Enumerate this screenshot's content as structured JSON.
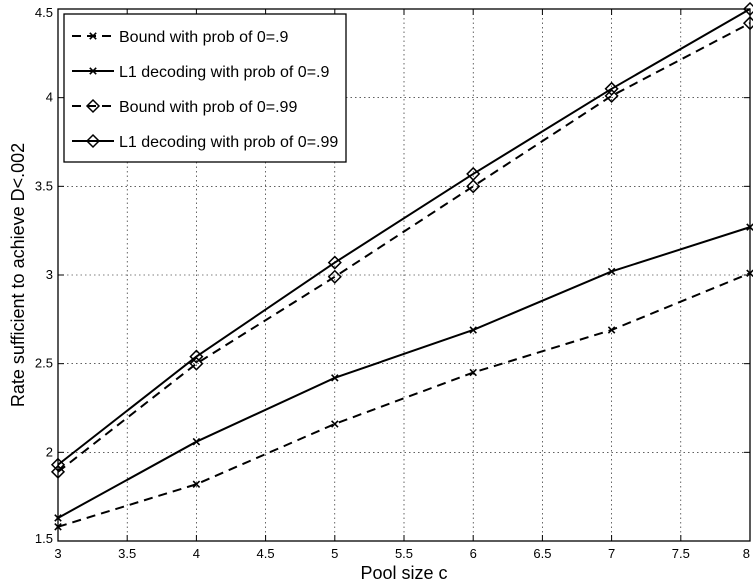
{
  "chart_data": {
    "type": "line",
    "title": "",
    "xlabel": "Pool size c",
    "ylabel": "Rate sufficient to achieve D<.002",
    "xlim": [
      3,
      8
    ],
    "ylim": [
      1.5,
      4.5
    ],
    "xticks": [
      3,
      3.5,
      4,
      4.5,
      5,
      5.5,
      6,
      6.5,
      7,
      7.5,
      8
    ],
    "xtick_labels": [
      "3",
      "3.5",
      "4",
      "4.5",
      "5",
      "5.5",
      "6",
      "6.5",
      "7",
      "7.5",
      "8"
    ],
    "yticks": [
      1.5,
      2,
      2.5,
      3,
      3.5,
      4,
      4.5
    ],
    "ytick_labels": [
      "1.5",
      "2",
      "2.5",
      "3",
      "3.5",
      "4",
      "4.5"
    ],
    "grid": true,
    "legend_position": "top-left",
    "x": [
      3,
      4,
      5,
      6,
      7,
      8
    ],
    "series": [
      {
        "name": "Bound with prob of 0=.9",
        "values": [
          1.58,
          1.82,
          2.16,
          2.45,
          2.69,
          3.01
        ],
        "marker": "x",
        "line_style": "dashed",
        "color": "#000000"
      },
      {
        "name": "L1 decoding with prob of 0=.9",
        "values": [
          1.63,
          2.06,
          2.42,
          2.69,
          3.02,
          3.27
        ],
        "marker": "x",
        "line_style": "solid",
        "color": "#000000"
      },
      {
        "name": "Bound with prob of 0=.99",
        "values": [
          1.89,
          2.5,
          2.99,
          3.5,
          4.01,
          4.42
        ],
        "marker": "diamond",
        "line_style": "dashed",
        "color": "#000000"
      },
      {
        "name": "L1 decoding with prob of 0=.99",
        "values": [
          1.93,
          2.54,
          3.07,
          3.57,
          4.05,
          4.5
        ],
        "marker": "diamond",
        "line_style": "solid",
        "color": "#000000"
      }
    ]
  }
}
